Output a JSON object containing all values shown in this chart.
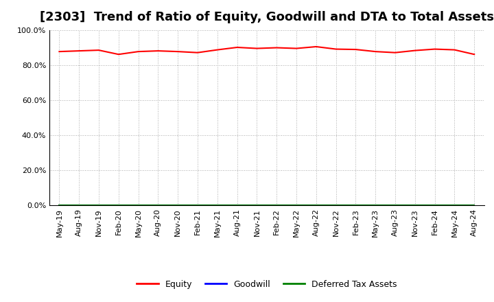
{
  "title": "[2303]  Trend of Ratio of Equity, Goodwill and DTA to Total Assets",
  "x_labels": [
    "May-19",
    "Aug-19",
    "Nov-19",
    "Feb-20",
    "May-20",
    "Aug-20",
    "Nov-20",
    "Feb-21",
    "May-21",
    "Aug-21",
    "Nov-21",
    "Feb-22",
    "May-22",
    "Aug-22",
    "Nov-22",
    "Feb-23",
    "May-23",
    "Aug-23",
    "Nov-23",
    "Feb-24",
    "May-24",
    "Aug-24"
  ],
  "equity": [
    0.878,
    0.882,
    0.886,
    0.862,
    0.878,
    0.882,
    0.878,
    0.872,
    0.888,
    0.902,
    0.896,
    0.9,
    0.896,
    0.906,
    0.892,
    0.89,
    0.878,
    0.872,
    0.884,
    0.892,
    0.888,
    0.862
  ],
  "goodwill": [
    0.0,
    0.0,
    0.0,
    0.0,
    0.0,
    0.0,
    0.0,
    0.0,
    0.0,
    0.0,
    0.0,
    0.0,
    0.0,
    0.0,
    0.0,
    0.0,
    0.0,
    0.0,
    0.0,
    0.0,
    0.0,
    0.0
  ],
  "dta": [
    0.0,
    0.0,
    0.0,
    0.0,
    0.0,
    0.0,
    0.0,
    0.0,
    0.0,
    0.0,
    0.0,
    0.0,
    0.0,
    0.0,
    0.0,
    0.0,
    0.0,
    0.0,
    0.0,
    0.0,
    0.0,
    0.0
  ],
  "equity_color": "#FF0000",
  "goodwill_color": "#0000FF",
  "dta_color": "#008000",
  "ylim": [
    0.0,
    1.0
  ],
  "yticks": [
    0.0,
    0.2,
    0.4,
    0.6,
    0.8,
    1.0
  ],
  "background_color": "#FFFFFF",
  "grid_color": "#AAAAAA",
  "title_fontsize": 13,
  "tick_fontsize": 8,
  "legend_labels": [
    "Equity",
    "Goodwill",
    "Deferred Tax Assets"
  ]
}
